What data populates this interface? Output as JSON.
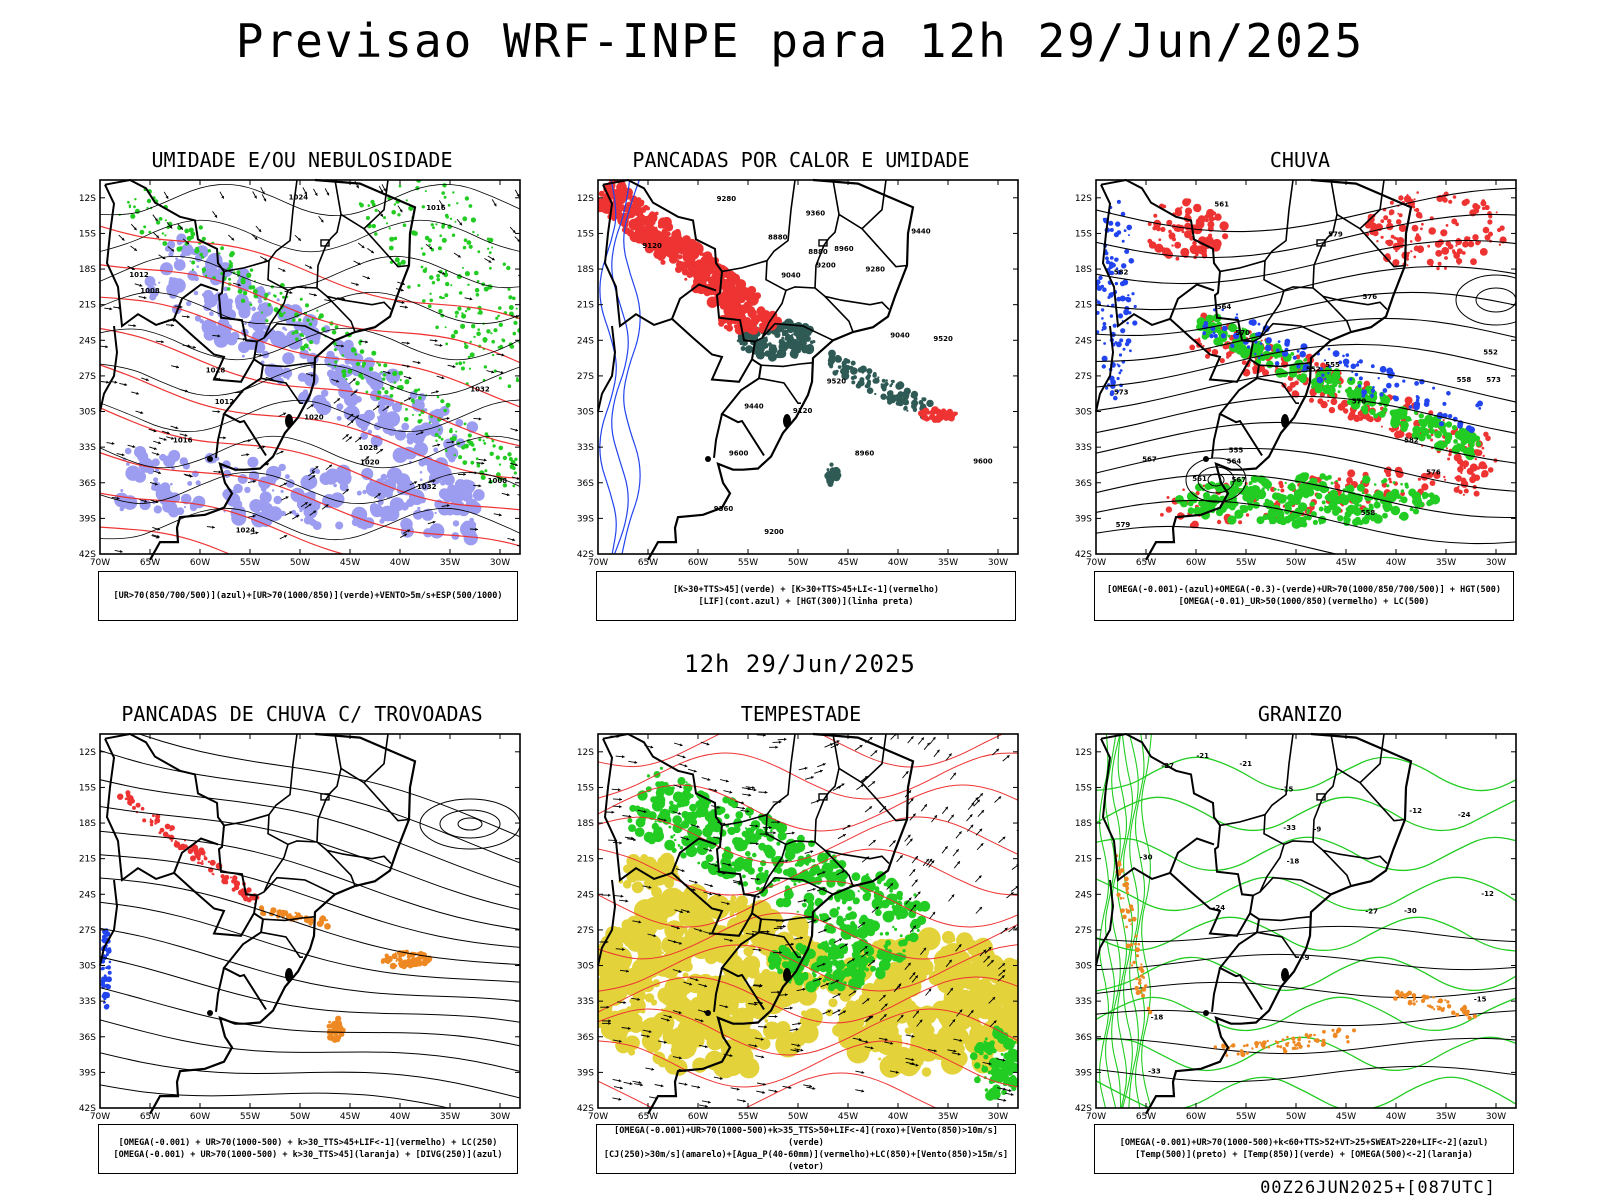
{
  "title": "Previsao WRF-INPE  para 12h 29/Jun/2025",
  "mid_date": "12h 29/Jun/2025",
  "footer": "00Z26JUN2025+[087UTC]",
  "lat_labels": [
    "12S",
    "15S",
    "18S",
    "21S",
    "24S",
    "27S",
    "30S",
    "33S",
    "36S",
    "39S",
    "42S"
  ],
  "lon_labels": [
    "70W",
    "65W",
    "60W",
    "55W",
    "50W",
    "45W",
    "40W",
    "35W",
    "30W"
  ],
  "panels": [
    {
      "title": "UMIDADE E/OU NEBULOSIDADE",
      "legend": [
        "[UR>70(850/700/500)](azul)+[UR>70(1000/850)](verde)+VENTO>5m/s+ESP(500/1000)"
      ],
      "contour_labels": [
        "1016",
        "1020",
        "1024",
        "1028",
        "1032",
        "1012",
        "1008"
      ]
    },
    {
      "title": "PANCADAS POR CALOR E UMIDADE",
      "legend": [
        "[K>30+TTS>45](verde) + [K>30+TTS>45+LI<-1](vermelho)",
        "[LIF](cont.azul) + [HGT(300)](linha preta)"
      ],
      "contour_labels": [
        "9600",
        "9520",
        "9440",
        "9360",
        "9280",
        "9200",
        "9120",
        "9040",
        "8960",
        "8880"
      ]
    },
    {
      "title": "CHUVA",
      "legend": [
        "[OMEGA(-0.001)-(azul)+OMEGA(-0.3)-(verde)+UR>70(1000/850/700/500)] + HGT(500)",
        "[OMEGA(-0.01)_UR>50(1000/850)(vermelho) + LC(500)"
      ],
      "contour_labels": [
        "582",
        "579",
        "576",
        "573",
        "570",
        "567",
        "564",
        "561",
        "558",
        "555",
        "552"
      ]
    },
    {
      "title": "PANCADAS DE CHUVA C/ TROVOADAS",
      "legend": [
        "[OMEGA(-0.001) + UR>70(1000-500) + k>30_TTS>45+LIF<-1](vermelho) + LC(250)",
        "[OMEGA(-0.001) + UR>70(1000-500) + k>30_TTS>45](laranja) + [DIVG(250)](azul)"
      ],
      "contour_labels": []
    },
    {
      "title": "TEMPESTADE",
      "legend": [
        "[OMEGA(-0.001)+UR>70(1000-500)+k>35_TTS>50+LIF<-4](roxo)+[Vento(850)>10m/s](verde)",
        "[CJ(250)>30m/s](amarelo)+[Agua_P(40-60mm)](vermelho)+LC(850)+[Vento(850)>15m/s](vetor)"
      ],
      "contour_labels": []
    },
    {
      "title": "GRANIZO",
      "legend": [
        "[OMEGA(-0.001)+UR>70(1000-500)+k<60+TTS>52+VT>25+SWEAT>220+LIF<-2](azul)",
        "[Temp(500)](preto) + [Temp(850)](verde) + [OMEGA(500)<-2](laranja)"
      ],
      "contour_labels": [
        "-9",
        "-12",
        "-15",
        "-18",
        "-21",
        "-24",
        "-27",
        "-30",
        "-33"
      ]
    }
  ],
  "colors": {
    "blue": "#2244ee",
    "green": "#22cc22",
    "red": "#ee3333",
    "orange": "#ee8822",
    "yellow": "#e3d23a",
    "lavender": "#9c9cf0",
    "teal": "#2f5a55",
    "black": "#000000"
  }
}
